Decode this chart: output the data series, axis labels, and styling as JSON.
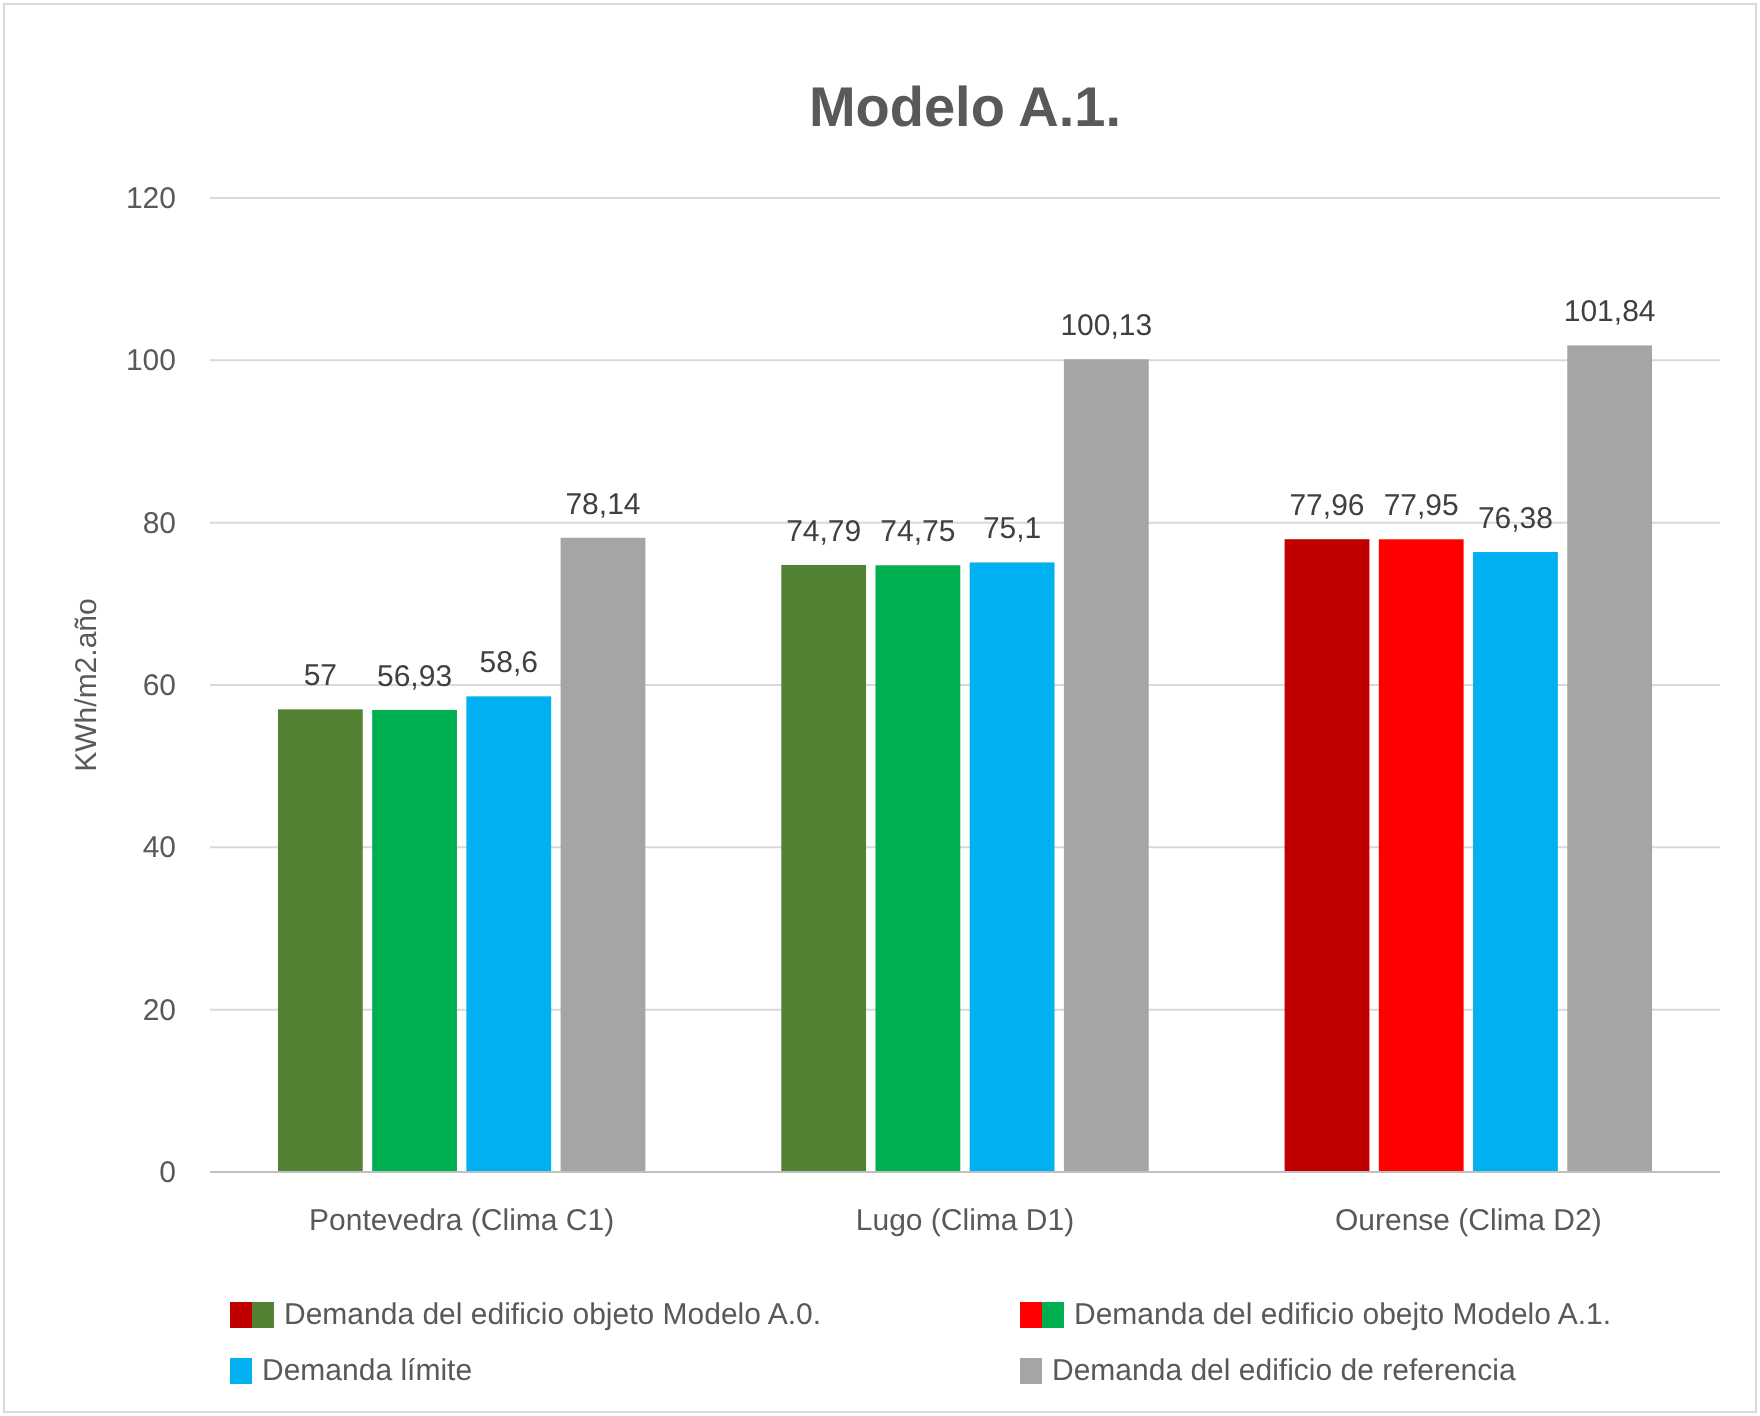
{
  "chart_data": {
    "type": "bar",
    "title": "Modelo A.1.",
    "ylabel": "KWh/m2.año",
    "categories": [
      "Pontevedra (Clima C1)",
      "Lugo (Clima D1)",
      "Ourense (Clima D2)"
    ],
    "series": [
      {
        "name": "Demanda del edificio objeto Modelo A.0.",
        "color": "#548235",
        "colors": [
          "#548235",
          "#548235",
          "#c00000"
        ],
        "values": [
          57,
          74.79,
          77.96
        ],
        "value_labels": [
          "57",
          "74,79",
          "77,96"
        ]
      },
      {
        "name": "Demanda del edificio obejto Modelo A.1.",
        "color": "#00b050",
        "colors": [
          "#00b050",
          "#00b050",
          "#ff0000"
        ],
        "values": [
          56.93,
          74.75,
          77.95
        ],
        "value_labels": [
          "56,93",
          "74,75",
          "77,95"
        ]
      },
      {
        "name": "Demanda límite",
        "color": "#00b0f0",
        "values": [
          58.6,
          75.1,
          76.38
        ],
        "value_labels": [
          "58,6",
          "75,1",
          "76,38"
        ]
      },
      {
        "name": "Demanda del edificio de referencia",
        "color": "#a5a5a5",
        "values": [
          78.14,
          100.13,
          101.84
        ],
        "value_labels": [
          "78,14",
          "100,13",
          "101,84"
        ]
      }
    ],
    "ylim": [
      0,
      120
    ],
    "yticks": [
      0,
      20,
      40,
      60,
      80,
      100,
      120
    ],
    "grid": "y",
    "legend": "bottom"
  }
}
